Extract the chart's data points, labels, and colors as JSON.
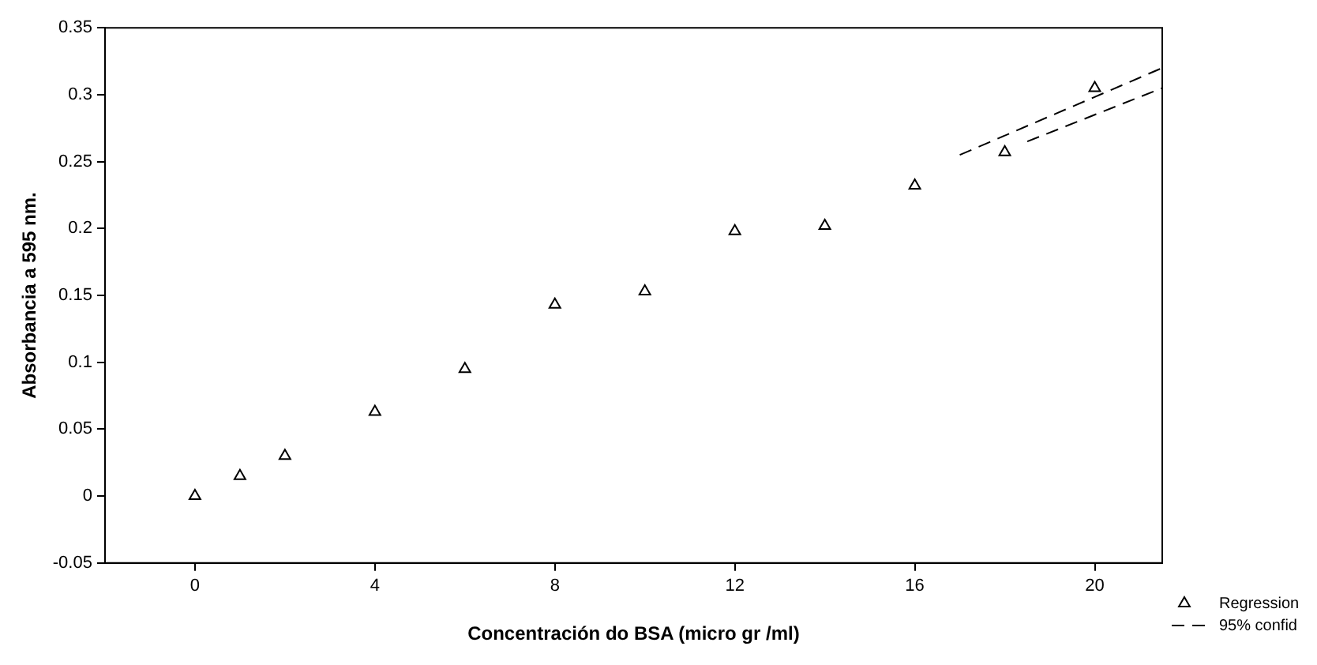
{
  "chart_data": {
    "type": "scatter",
    "xlabel": "Concentración do BSA (micro gr /ml)",
    "ylabel": "Absorbancia a 595 nm.",
    "x": [
      0,
      1,
      2,
      4,
      6,
      8,
      10,
      12,
      14,
      16,
      18,
      20
    ],
    "series": [
      {
        "name": "Regression",
        "type": "scatter",
        "color": "#000000",
        "marker": "triangle",
        "values": [
          0,
          0.015,
          0.03,
          0.063,
          0.095,
          0.143,
          0.153,
          0.198,
          0.202,
          0.232,
          0.257,
          0.305
        ]
      },
      {
        "name": "95% confid",
        "type": "line",
        "color": "#000000",
        "line_style": "dashed",
        "marker": "none",
        "x": [
          17,
          21.5
        ],
        "values": [
          0.255,
          0.32
        ]
      },
      {
        "type": "line",
        "color": "#000000",
        "line_style": "dashed",
        "marker": "none",
        "x": [
          18.5,
          21.5
        ],
        "values": [
          0.265,
          0.305
        ]
      }
    ],
    "xlim": [
      -2,
      21.5
    ],
    "xticks": [
      0,
      4,
      8,
      12,
      16,
      20
    ],
    "ylim": [
      -0.05,
      0.35
    ],
    "yticks": [
      -0.05,
      0,
      0.05,
      0.1,
      0.15,
      0.2,
      0.25,
      0.3,
      0.35
    ],
    "grid": false,
    "legend": "bottom right"
  }
}
